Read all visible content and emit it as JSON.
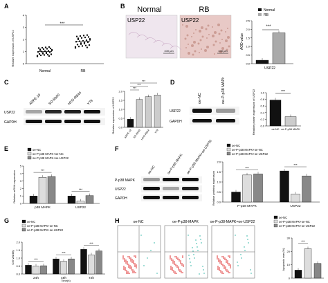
{
  "panels": {
    "A": {
      "letter": "A",
      "ylabel": "Relative expression of USP22",
      "categories": [
        "Normal",
        "RB"
      ],
      "yticks": [
        "0",
        "1",
        "2",
        "3",
        "4"
      ],
      "sig": "***"
    },
    "B": {
      "letter": "B",
      "image_titles": [
        "Normal",
        "RB"
      ],
      "image_labels": [
        "USP22",
        "USP22"
      ],
      "scale": [
        "100 μm",
        "100 μm"
      ],
      "legend": [
        "Normal",
        "RB"
      ],
      "ylabel": "AOD value",
      "yticks": [
        "0.0",
        "0.5",
        "1.0",
        "1.5",
        "2.0",
        "2.5"
      ],
      "xlabel": "USP22",
      "sig": "***"
    },
    "C": {
      "letter": "C",
      "lanes": [
        "ARPE-19",
        "SO-Rb50",
        "HXO-RB44",
        "Y79"
      ],
      "rows": [
        "USP22",
        "GAPDH"
      ],
      "ylabel": "Relative expression of USP22",
      "yticks": [
        "0.0",
        "0.5",
        "1.0",
        "1.5",
        "2.0"
      ],
      "sig": [
        "***",
        "***",
        "***"
      ]
    },
    "D": {
      "letter": "D",
      "lanes": [
        "oe-NC",
        "oe-P-p38 MAPK"
      ],
      "rows": [
        "USP22",
        "GAPDH"
      ],
      "ylabel": "Relative protein expression of USP22",
      "yticks": [
        "0.0",
        "0.2",
        "0.4",
        "0.6",
        "0.8",
        "1.0"
      ],
      "xcats": [
        "oe-NC",
        "oe-P-p38 MAPK"
      ],
      "sig": "***"
    },
    "E": {
      "letter": "E",
      "legend": [
        "oe-NC",
        "oe-P-p38 MAPK+oe-NC",
        "oe-P-p38 MAPK+oe-USP22"
      ],
      "ylabel": "Relative mRNA expression",
      "yticks": [
        "0",
        "1",
        "2",
        "3",
        "4",
        "5"
      ],
      "groups": [
        "p38 MAPK",
        "USP22"
      ],
      "sig": "***"
    },
    "F": {
      "letter": "F",
      "lanes": [
        "oe-NC",
        "oe-P-p38 MAPK",
        "oe-P-p38 MAPK+oe-USP22"
      ],
      "rows": [
        "P-p38 MAPK",
        "USP22",
        "GAPDH"
      ],
      "legend": [
        "oe-NC",
        "oe-P-p38 MAPK+oe-NC",
        "oe-P-p38 MAPK+oe-USP22"
      ],
      "ylabel": "Relative proteins expression",
      "yticks": [
        "0.0",
        "0.5",
        "1.0",
        "1.5",
        "2.0"
      ],
      "groups": [
        "P-p38 MAPK",
        "USP22"
      ],
      "sig": "***"
    },
    "G": {
      "letter": "G",
      "legend": [
        "oe-NC",
        "oe-P-p38 MAPK+oe-NC",
        "oe-P-p38 MAPK+oe-USP22"
      ],
      "ylabel": "Cell viability",
      "yticks": [
        "0.0",
        "0.5",
        "1.0",
        "1.5",
        "2.0"
      ],
      "groups": [
        "24h",
        "48h",
        "72h"
      ],
      "xlabel": "Time(h)",
      "sig": "***"
    },
    "H": {
      "letter": "H",
      "titles": [
        "oe-NC",
        "oe-P-p38-MAPK",
        "oe-P-p38-MAPK+oe-USP22"
      ],
      "legend": [
        "oe-NC",
        "oe-P-p38 MAPK+oe-NC",
        "oe-P-p38 MAPK+oe-USP22"
      ],
      "ylabel": "Apoptosis rate (%)",
      "yticks": [
        "0",
        "10",
        "20",
        "30"
      ],
      "sig": "***"
    }
  },
  "chart_data": [
    {
      "type": "scatter",
      "panel": "A",
      "categories": [
        "Normal",
        "RB"
      ],
      "ylim": [
        0,
        4
      ],
      "series": [
        {
          "mean": 1.0
        },
        {
          "mean": 1.85
        }
      ]
    },
    {
      "type": "bar",
      "panel": "B",
      "categories": [
        "Normal",
        "RB"
      ],
      "values": [
        0.2,
        1.8
      ],
      "ylim": [
        0,
        2.5
      ]
    },
    {
      "type": "bar",
      "panel": "C",
      "categories": [
        "ARPE-19",
        "SO-Rb50",
        "HXO-RB44",
        "Y79"
      ],
      "values": [
        0.45,
        1.55,
        1.7,
        1.8
      ],
      "ylim": [
        0,
        2
      ]
    },
    {
      "type": "bar",
      "panel": "D",
      "categories": [
        "oe-NC",
        "oe-P-p38 MAPK"
      ],
      "values": [
        0.78,
        0.28
      ],
      "ylim": [
        0,
        1
      ]
    },
    {
      "type": "bar",
      "panel": "E",
      "categories": [
        "p38 MAPK",
        "USP22"
      ],
      "ylim": [
        0,
        5
      ],
      "series": [
        {
          "values": [
            1.0,
            1.0
          ]
        },
        {
          "values": [
            3.5,
            0.3
          ]
        },
        {
          "values": [
            3.6,
            1.05
          ]
        }
      ]
    },
    {
      "type": "bar",
      "panel": "F",
      "categories": [
        "P-p38 MAPK",
        "USP22"
      ],
      "ylim": [
        0,
        2
      ],
      "series": [
        {
          "values": [
            0.5,
            1.55
          ]
        },
        {
          "values": [
            1.35,
            0.4
          ]
        },
        {
          "values": [
            1.4,
            1.3
          ]
        }
      ]
    },
    {
      "type": "bar",
      "panel": "G",
      "categories": [
        "24h",
        "48h",
        "72h"
      ],
      "ylim": [
        0,
        2
      ],
      "series": [
        {
          "values": [
            0.55,
            0.95,
            1.55
          ]
        },
        {
          "values": [
            0.5,
            0.8,
            1.2
          ]
        },
        {
          "values": [
            0.52,
            0.95,
            1.45
          ]
        }
      ]
    },
    {
      "type": "bar",
      "panel": "H",
      "categories": [
        "oe-NC",
        "oe-P-p38 MAPK+oe-NC",
        "oe-P-p38 MAPK+oe-USP22"
      ],
      "values": [
        6,
        22,
        11
      ],
      "ylim": [
        0,
        30
      ]
    }
  ]
}
